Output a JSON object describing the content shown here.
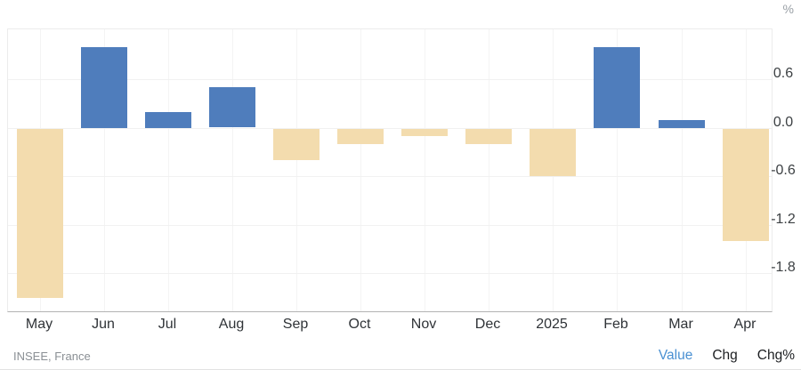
{
  "header": {
    "unit_label": "%"
  },
  "footer": {
    "source": "INSEE, France",
    "legend": [
      {
        "label": "Value",
        "active": true
      },
      {
        "label": "Chg",
        "active": false
      },
      {
        "label": "Chg%",
        "active": false
      }
    ]
  },
  "colors": {
    "positive_bar": "#4f7dbc",
    "negative_bar": "#f3dcae",
    "gridline": "#f1f1f1",
    "axis_line": "#b3b3b3",
    "legend_active": "#4a90d2",
    "legend_inactive": "#1c1e21"
  },
  "chart_data": {
    "type": "bar",
    "title": "",
    "xlabel": "",
    "ylabel": "%",
    "categories": [
      "May",
      "Jun",
      "Jul",
      "Aug",
      "Sep",
      "Oct",
      "Nov",
      "Dec",
      "2025",
      "Feb",
      "Mar",
      "Apr"
    ],
    "values": [
      -2.1,
      1.0,
      0.2,
      0.5,
      -0.4,
      -0.2,
      -0.1,
      -0.2,
      -0.6,
      1.0,
      0.1,
      -1.4
    ],
    "yticks": [
      0.6,
      0.0,
      -0.6,
      -1.2,
      -1.8
    ],
    "ylim": [
      -2.27,
      1.22
    ],
    "grid": true,
    "legend_position": "bottom-right",
    "source": "INSEE, France"
  }
}
